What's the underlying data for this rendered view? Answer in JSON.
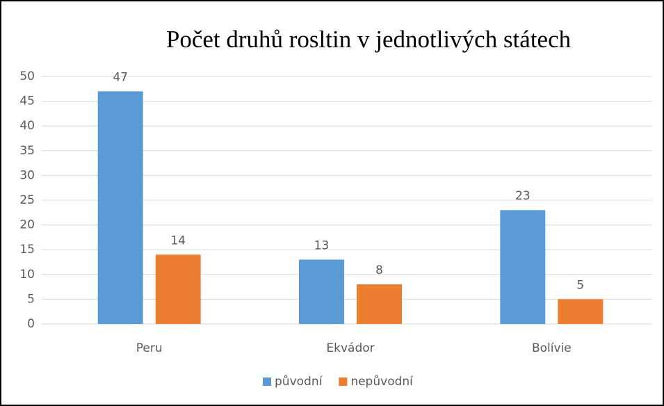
{
  "chart_data": {
    "type": "bar",
    "title": "Počet druhů rosltin v jednotlivých státech",
    "categories": [
      "Peru",
      "Ekvádor",
      "Bolívie"
    ],
    "series": [
      {
        "name": "původní",
        "color": "#5b9bd5",
        "values": [
          47,
          13,
          23
        ]
      },
      {
        "name": "nepůvodní",
        "color": "#ed7d31",
        "values": [
          14,
          8,
          5
        ]
      }
    ],
    "ylim": [
      0,
      50
    ],
    "yticks": [
      0,
      5,
      10,
      15,
      20,
      25,
      30,
      35,
      40,
      45,
      50
    ],
    "grid": true,
    "legend": "bottom"
  }
}
